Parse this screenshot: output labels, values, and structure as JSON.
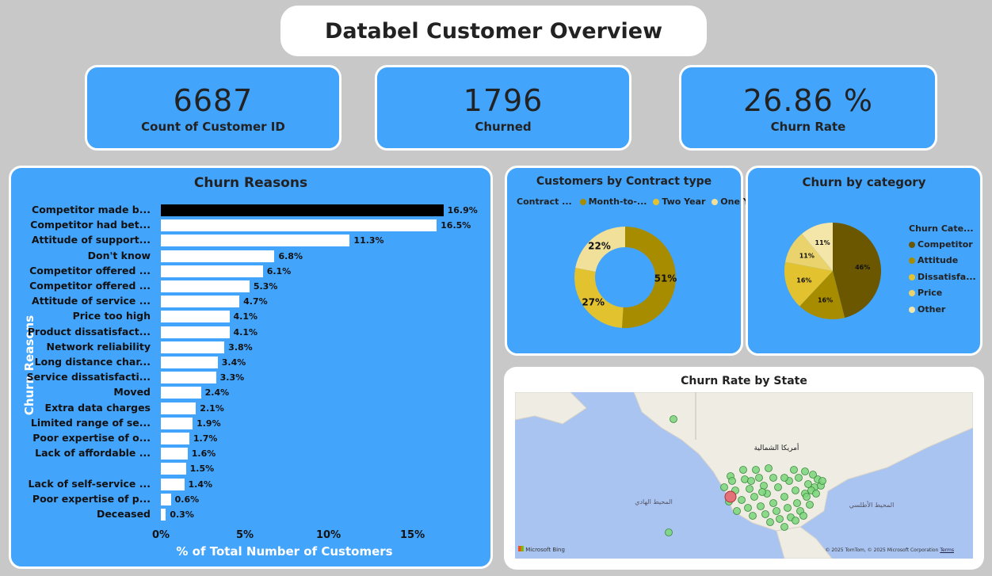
{
  "dashboard": {
    "title": "Databel Customer Overview"
  },
  "kpis": [
    {
      "value": "6687",
      "label": "Count of Customer ID"
    },
    {
      "value": "1796",
      "label": "Churned"
    },
    {
      "value": "26.86 %",
      "label": "Churn Rate"
    }
  ],
  "churn_reasons": {
    "title": "Churn Reasons",
    "ylabel": "Churn Reasons",
    "xlabel": "% of Total Number of Customers",
    "ticks": [
      "0%",
      "5%",
      "10%",
      "15%"
    ]
  },
  "contract": {
    "title": "Customers by Contract type",
    "legend_title": "Contract ...",
    "legend": [
      "Month-to-...",
      "Two Year",
      "One Year"
    ]
  },
  "category": {
    "title": "Churn by category",
    "legend_title": "Churn Cate...",
    "legend": [
      "Competitor",
      "Attitude",
      "Dissatisfa...",
      "Price",
      "Other"
    ]
  },
  "map": {
    "title": "Churn Rate by State",
    "label_na": "أمريكا الشمالية",
    "label_pacific": "المحيط الهادي",
    "label_atlantic": "المحيط الأطلسي",
    "bing": "Microsoft Bing",
    "copyright": "© 2025 TomTom, © 2025 Microsoft Corporation",
    "terms": "Terms"
  },
  "colors": {
    "accent_blue": "#43a4fc",
    "highlight_bar": "#000000",
    "bar": "#ffffff",
    "month_to_month": "#a88c00",
    "two_year": "#e3c22f",
    "one_year": "#f0e09a",
    "competitor": "#6b5700",
    "attitude": "#a88c00",
    "dissatisfaction": "#e3c22f",
    "price": "#ead26d",
    "other": "#f3e6a8",
    "map_point": "#7bd67b",
    "map_point_high": "#e4707a"
  },
  "chart_data": [
    {
      "type": "bar",
      "title": "Churn Reasons",
      "xlabel": "% of Total Number of Customers",
      "ylabel": "Churn Reasons",
      "xlim": [
        0,
        17
      ],
      "categories": [
        "Competitor made b...",
        "Competitor had bet...",
        "Attitude of support...",
        "Don't know",
        "Competitor offered ...",
        "Competitor offered ...",
        "Attitude of service ...",
        "Price too high",
        "Product dissatisfact...",
        "Network reliability",
        "Long distance char...",
        "Service dissatisfacti...",
        "Moved",
        "Extra data charges",
        "Limited range of se...",
        "Poor expertise of o...",
        "Lack of affordable ...",
        "",
        "Lack of self-service ...",
        "Poor expertise of p...",
        "Deceased"
      ],
      "values": [
        16.9,
        16.5,
        11.3,
        6.8,
        6.1,
        5.3,
        4.7,
        4.1,
        4.1,
        3.8,
        3.4,
        3.3,
        2.4,
        2.1,
        1.9,
        1.7,
        1.6,
        1.5,
        1.4,
        0.6,
        0.3
      ],
      "labels": [
        "16.9%",
        "16.5%",
        "11.3%",
        "6.8%",
        "6.1%",
        "5.3%",
        "4.7%",
        "4.1%",
        "4.1%",
        "3.8%",
        "3.4%",
        "3.3%",
        "2.4%",
        "2.1%",
        "1.9%",
        "1.7%",
        "1.6%",
        "1.5%",
        "1.4%",
        "0.6%",
        "0.3%"
      ]
    },
    {
      "type": "pie",
      "title": "Customers by Contract type",
      "donut": true,
      "categories": [
        "Month-to-...",
        "Two Year",
        "One Year"
      ],
      "values": [
        51,
        27,
        22
      ],
      "labels": [
        "51%",
        "27%",
        "22%"
      ]
    },
    {
      "type": "pie",
      "title": "Churn by category",
      "categories": [
        "Competitor",
        "Attitude",
        "Dissatisfa...",
        "Price",
        "Other"
      ],
      "values": [
        46,
        16,
        16,
        11,
        11
      ],
      "labels": [
        "46%",
        "16%",
        "16%",
        "11%",
        "11%"
      ]
    }
  ]
}
